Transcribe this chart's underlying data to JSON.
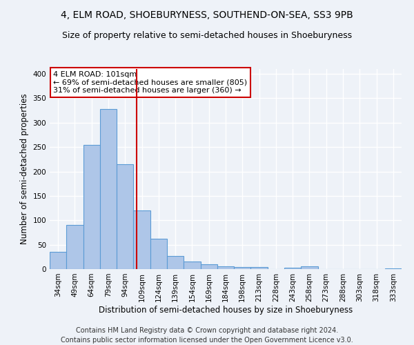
{
  "title": "4, ELM ROAD, SHOEBURYNESS, SOUTHEND-ON-SEA, SS3 9PB",
  "subtitle": "Size of property relative to semi-detached houses in Shoeburyness",
  "xlabel": "Distribution of semi-detached houses by size in Shoeburyness",
  "ylabel": "Number of semi-detached properties",
  "categories": [
    "34sqm",
    "49sqm",
    "64sqm",
    "79sqm",
    "94sqm",
    "109sqm",
    "124sqm",
    "139sqm",
    "154sqm",
    "169sqm",
    "184sqm",
    "198sqm",
    "213sqm",
    "228sqm",
    "243sqm",
    "258sqm",
    "273sqm",
    "288sqm",
    "303sqm",
    "318sqm",
    "333sqm"
  ],
  "values": [
    35,
    90,
    255,
    328,
    215,
    120,
    62,
    27,
    15,
    10,
    5,
    4,
    4,
    0,
    3,
    5,
    0,
    0,
    0,
    0,
    2
  ],
  "bar_color": "#aec6e8",
  "bar_edge_color": "#5b9bd5",
  "vline_x": 4.69,
  "vline_color": "#cc0000",
  "annotation_text": "4 ELM ROAD: 101sqm\n← 69% of semi-detached houses are smaller (805)\n31% of semi-detached houses are larger (360) →",
  "annotation_box_color": "#ffffff",
  "annotation_box_edge": "#cc0000",
  "ylim": [
    0,
    410
  ],
  "yticks": [
    0,
    50,
    100,
    150,
    200,
    250,
    300,
    350,
    400
  ],
  "footer": "Contains HM Land Registry data © Crown copyright and database right 2024.\nContains public sector information licensed under the Open Government Licence v3.0.",
  "bg_color": "#eef2f8",
  "plot_bg_color": "#eef2f8",
  "grid_color": "#ffffff",
  "title_fontsize": 10,
  "subtitle_fontsize": 9,
  "xlabel_fontsize": 8.5,
  "ylabel_fontsize": 8.5,
  "tick_fontsize": 7.5,
  "footer_fontsize": 7,
  "ann_fontsize": 8
}
